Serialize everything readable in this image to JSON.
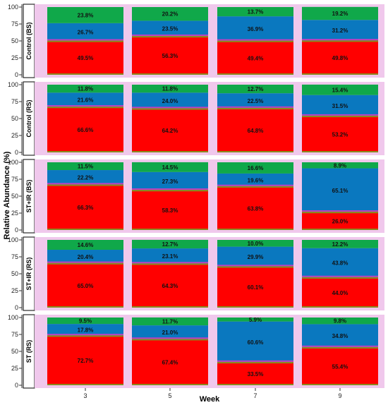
{
  "chart_data": {
    "type": "bar",
    "stacked": true,
    "xlabel": "Week",
    "ylabel": "Relative Abundance (%)",
    "categories": [
      "3",
      "5",
      "7",
      "9"
    ],
    "ylim": [
      0,
      100
    ],
    "yticks": [
      "0",
      "25",
      "50",
      "75",
      "100"
    ],
    "colors": {
      "red": "#ff0000",
      "blue": "#0a78bf",
      "green": "#10a84a",
      "magenta": "#c040c0",
      "olive": "#8a8a20",
      "panel_bg": "#f0c8ec"
    },
    "panels": [
      {
        "label": "Control (BS)",
        "red": [
          49.5,
          56.3,
          49.4,
          49.8
        ],
        "blue": [
          26.7,
          23.5,
          36.9,
          31.2
        ],
        "green": [
          23.8,
          20.2,
          13.7,
          19.2
        ],
        "red_text": [
          "49.5%",
          "56.3%",
          "49.4%",
          "49.8%"
        ],
        "blue_text": [
          "26.7%",
          "23.5%",
          "36.9%",
          "31.2%"
        ],
        "green_text": [
          "23.8%",
          "20.2%",
          "13.7%",
          "19.2%"
        ]
      },
      {
        "label": "Control (RS)",
        "red": [
          66.6,
          64.2,
          64.8,
          53.2
        ],
        "blue": [
          21.6,
          24.0,
          22.5,
          31.5
        ],
        "green": [
          11.8,
          11.8,
          12.7,
          15.4
        ],
        "red_text": [
          "66.6%",
          "64.2%",
          "64.8%",
          "53.2%"
        ],
        "blue_text": [
          "21.6%",
          "24.0%",
          "22.5%",
          "31.5%"
        ],
        "green_text": [
          "11.8%",
          "11.8%",
          "12.7%",
          "15.4%"
        ]
      },
      {
        "label": "ST+IR (BS)",
        "red": [
          66.3,
          58.3,
          63.8,
          26.0
        ],
        "blue": [
          22.2,
          27.3,
          19.6,
          65.1
        ],
        "green": [
          11.5,
          14.5,
          16.6,
          8.9
        ],
        "red_text": [
          "66.3%",
          "58.3%",
          "63.8%",
          "26.0%"
        ],
        "blue_text": [
          "22.2%",
          "27.3%",
          "19.6%",
          "65.1%"
        ],
        "green_text": [
          "11.5%",
          "14.5%",
          "16.6%",
          "8.9%"
        ]
      },
      {
        "label": "ST+IR (RS)",
        "red": [
          65.0,
          64.3,
          60.1,
          44.0
        ],
        "blue": [
          20.4,
          23.1,
          29.9,
          43.8
        ],
        "green": [
          14.6,
          12.7,
          10.0,
          12.2
        ],
        "red_text": [
          "65.0%",
          "64.3%",
          "60.1%",
          "44.0%"
        ],
        "blue_text": [
          "20.4%",
          "23.1%",
          "29.9%",
          "43.8%"
        ],
        "green_text": [
          "14.6%",
          "12.7%",
          "10.0%",
          "12.2%"
        ]
      },
      {
        "label": "ST (RS)",
        "red": [
          72.7,
          67.4,
          33.5,
          55.4
        ],
        "blue": [
          17.8,
          21.0,
          60.6,
          34.8
        ],
        "green": [
          9.5,
          11.7,
          5.9,
          9.8
        ],
        "red_text": [
          "72.7%",
          "67.4%",
          "33.5%",
          "55.4%"
        ],
        "blue_text": [
          "17.8%",
          "21.0%",
          "60.6%",
          "34.8%"
        ],
        "green_text": [
          "9.5%",
          "11.7%",
          "5.9%",
          "9.8%"
        ]
      }
    ]
  }
}
